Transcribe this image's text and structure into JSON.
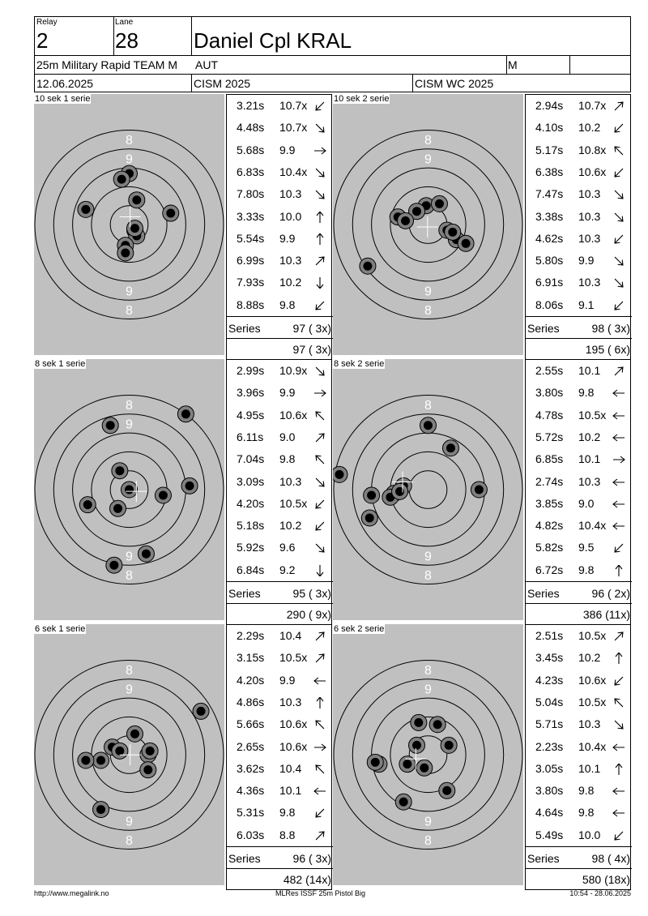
{
  "header": {
    "relay_label": "Relay",
    "relay": "2",
    "lane_label": "Lane",
    "lane": "28",
    "name": "Daniel Cpl KRAL",
    "event": "25m Military Rapid TEAM M",
    "nation": "AUT",
    "gender": "M",
    "date": "12.06.2025",
    "competition": "CISM 2025",
    "championship": "CISM WC 2025"
  },
  "panels": [
    {
      "title": "10 sek 1 serie",
      "shots": [
        {
          "time": "3.21s",
          "value": "10.7x",
          "dir": "sw",
          "x": 0.3,
          "y": -0.3
        },
        {
          "time": "4.48s",
          "value": "10.7x",
          "dir": "se",
          "x": 0.4,
          "y": -0.6
        },
        {
          "time": "5.68s",
          "value": "9.9",
          "dir": "e",
          "x": -2.3,
          "y": 0.8
        },
        {
          "time": "6.83s",
          "value": "10.4x",
          "dir": "se",
          "x": 0.3,
          "y": -0.2
        },
        {
          "time": "7.80s",
          "value": "10.3",
          "dir": "se",
          "x": -0.2,
          "y": -1.1
        },
        {
          "time": "3.33s",
          "value": "10.0",
          "dir": "n",
          "x": 2.2,
          "y": 0.6
        },
        {
          "time": "5.54s",
          "value": "9.9",
          "dir": "n",
          "x": 0.4,
          "y": 1.3
        },
        {
          "time": "6.99s",
          "value": "10.3",
          "dir": "ne",
          "x": -0.2,
          "y": -1.5
        },
        {
          "time": "7.93s",
          "value": "10.2",
          "dir": "s",
          "x": 0.0,
          "y": 2.7
        },
        {
          "time": "8.88s",
          "value": "9.8",
          "dir": "sw",
          "x": -0.4,
          "y": 2.4
        }
      ],
      "series_label": "Series",
      "series": "97 ( 3x)",
      "total": "97 ( 3x)"
    },
    {
      "title": "10 sek 2 serie",
      "shots": [
        {
          "time": "2.94s",
          "value": "10.7x",
          "dir": "ne",
          "x": -0.1,
          "y": 1.0
        },
        {
          "time": "4.10s",
          "value": "10.2",
          "dir": "sw",
          "x": 0.6,
          "y": 1.1
        },
        {
          "time": "5.17s",
          "value": "10.8x",
          "dir": "nw",
          "x": -1.6,
          "y": 0.4
        },
        {
          "time": "6.38s",
          "value": "10.6x",
          "dir": "sw",
          "x": -0.6,
          "y": 0.7
        },
        {
          "time": "7.47s",
          "value": "10.3",
          "dir": "se",
          "x": 1.0,
          "y": -0.3
        },
        {
          "time": "3.38s",
          "value": "10.3",
          "dir": "se",
          "x": 1.5,
          "y": -0.8
        },
        {
          "time": "4.62s",
          "value": "10.3",
          "dir": "sw",
          "x": 1.3,
          "y": -0.4
        },
        {
          "time": "5.80s",
          "value": "9.9",
          "dir": "se",
          "x": -1.2,
          "y": 0.2
        },
        {
          "time": "6.91s",
          "value": "10.3",
          "dir": "se",
          "x": -3.2,
          "y": -2.2
        },
        {
          "time": "8.06s",
          "value": "9.1",
          "dir": "sw",
          "x": 2.0,
          "y": -1.0
        }
      ],
      "series_label": "Series",
      "series": "98 ( 3x)",
      "total": "195 ( 6x)"
    },
    {
      "title": "8 sek 1 serie",
      "shots": [
        {
          "time": "2.99s",
          "value": "10.9x",
          "dir": "se",
          "x": 0.0,
          "y": 0.0
        },
        {
          "time": "3.96s",
          "value": "9.9",
          "dir": "e",
          "x": -2.2,
          "y": -0.8
        },
        {
          "time": "4.95s",
          "value": "10.6x",
          "dir": "nw",
          "x": -0.5,
          "y": 1.0
        },
        {
          "time": "6.11s",
          "value": "9.0",
          "dir": "ne",
          "x": -0.6,
          "y": -1.0
        },
        {
          "time": "7.04s",
          "value": "9.8",
          "dir": "nw",
          "x": 1.8,
          "y": -0.3
        },
        {
          "time": "3.09s",
          "value": "10.3",
          "dir": "se",
          "x": 3.2,
          "y": 0.2
        },
        {
          "time": "4.20s",
          "value": "10.5x",
          "dir": "sw",
          "x": -1.0,
          "y": 3.4
        },
        {
          "time": "5.18s",
          "value": "10.2",
          "dir": "sw",
          "x": 3.0,
          "y": 4.0
        },
        {
          "time": "5.92s",
          "value": "9.6",
          "dir": "se",
          "x": 0.9,
          "y": -3.4
        },
        {
          "time": "6.84s",
          "value": "9.2",
          "dir": "s",
          "x": -0.8,
          "y": -4.0
        }
      ],
      "series_label": "Series",
      "series": "95 ( 3x)",
      "total": "290 ( 9x)"
    },
    {
      "title": "8 sek 2 serie",
      "shots": [
        {
          "time": "2.55s",
          "value": "10.1",
          "dir": "ne",
          "x": 0.0,
          "y": 3.4
        },
        {
          "time": "3.80s",
          "value": "9.8",
          "dir": "w",
          "x": 1.2,
          "y": 2.2
        },
        {
          "time": "4.78s",
          "value": "10.5x",
          "dir": "w",
          "x": 2.7,
          "y": 0.0
        },
        {
          "time": "5.72s",
          "value": "10.2",
          "dir": "w",
          "x": -1.3,
          "y": 0.2
        },
        {
          "time": "6.85s",
          "value": "10.1",
          "dir": "e",
          "x": -1.8,
          "y": -0.2
        },
        {
          "time": "2.74s",
          "value": "10.3",
          "dir": "w",
          "x": -2.0,
          "y": -0.4
        },
        {
          "time": "3.85s",
          "value": "9.0",
          "dir": "w",
          "x": -1.5,
          "y": -0.1
        },
        {
          "time": "4.82s",
          "value": "10.4x",
          "dir": "w",
          "x": -3.0,
          "y": -0.3
        },
        {
          "time": "5.82s",
          "value": "9.5",
          "dir": "sw",
          "x": -3.1,
          "y": -1.5
        },
        {
          "time": "6.72s",
          "value": "9.8",
          "dir": "n",
          "x": -4.7,
          "y": 0.8
        }
      ],
      "series_label": "Series",
      "series": "96 ( 2x)",
      "total": "386 (11x)"
    },
    {
      "title": "6 sek 1 serie",
      "shots": [
        {
          "time": "2.29s",
          "value": "10.4",
          "dir": "ne",
          "x": 0.3,
          "y": 1.1
        },
        {
          "time": "3.15s",
          "value": "10.5x",
          "dir": "ne",
          "x": -0.9,
          "y": 0.4
        },
        {
          "time": "4.20s",
          "value": "9.9",
          "dir": "w",
          "x": 1.0,
          "y": 0.0
        },
        {
          "time": "4.86s",
          "value": "10.3",
          "dir": "n",
          "x": 1.0,
          "y": -0.8
        },
        {
          "time": "5.66s",
          "value": "10.6x",
          "dir": "nw",
          "x": -0.5,
          "y": 0.2
        },
        {
          "time": "2.65s",
          "value": "10.6x",
          "dir": "e",
          "x": 1.1,
          "y": 0.2
        },
        {
          "time": "3.62s",
          "value": "10.4",
          "dir": "nw",
          "x": -1.5,
          "y": -0.3
        },
        {
          "time": "4.36s",
          "value": "10.1",
          "dir": "w",
          "x": -2.3,
          "y": -0.3
        },
        {
          "time": "5.31s",
          "value": "9.8",
          "dir": "sw",
          "x": -1.5,
          "y": -2.9
        },
        {
          "time": "6.03s",
          "value": "8.8",
          "dir": "ne",
          "x": 3.8,
          "y": 2.3
        }
      ],
      "series_label": "Series",
      "series": "96 ( 3x)",
      "total": "482 (14x)"
    },
    {
      "title": "6 sek 2 serie",
      "shots": [
        {
          "time": "2.51s",
          "value": "10.5x",
          "dir": "ne",
          "x": -0.5,
          "y": 1.7
        },
        {
          "time": "3.45s",
          "value": "10.2",
          "dir": "n",
          "x": 0.5,
          "y": 1.6
        },
        {
          "time": "4.23s",
          "value": "10.6x",
          "dir": "sw",
          "x": -0.2,
          "y": -0.7
        },
        {
          "time": "5.04s",
          "value": "10.5x",
          "dir": "nw",
          "x": -1.1,
          "y": -0.5
        },
        {
          "time": "5.71s",
          "value": "10.3",
          "dir": "se",
          "x": 1.0,
          "y": -1.9
        },
        {
          "time": "2.23s",
          "value": "10.4x",
          "dir": "w",
          "x": -2.6,
          "y": -0.5
        },
        {
          "time": "3.05s",
          "value": "10.1",
          "dir": "n",
          "x": -1.3,
          "y": -2.5
        },
        {
          "time": "3.80s",
          "value": "9.8",
          "dir": "w",
          "x": -0.6,
          "y": 0.5
        },
        {
          "time": "4.64s",
          "value": "9.8",
          "dir": "w",
          "x": 1.1,
          "y": 0.5
        },
        {
          "time": "5.49s",
          "value": "10.0",
          "dir": "sw",
          "x": -2.8,
          "y": -0.4
        }
      ],
      "series_label": "Series",
      "series": "98 ( 4x)",
      "total": "580 (18x)"
    }
  ],
  "ring_labels": {
    "eight": "8",
    "nine": "9"
  },
  "footer": {
    "url": "http://www.megalink.no",
    "software": "MLRes ISSF 25m Pistol Big",
    "timestamp": "10:54 - 28.06.2025"
  }
}
